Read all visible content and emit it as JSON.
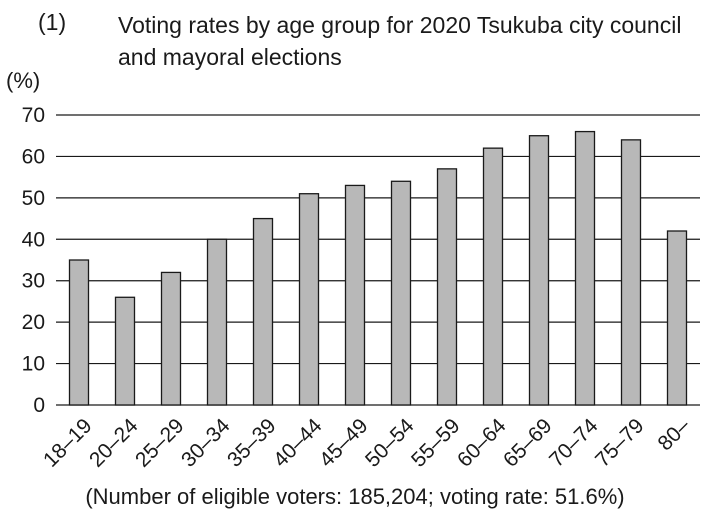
{
  "title_number": "(1)",
  "title": "Voting rates by age group for 2020 Tsukuba city council and mayoral elections",
  "y_unit": "(%)",
  "footnote": "(Number of eligible voters: 185,204; voting rate: 51.6%)",
  "colors": {
    "bar_fill": "#b8b8b8",
    "bar_stroke": "#1a1a1a",
    "grid": "#1a1a1a"
  },
  "chart_data": {
    "type": "bar",
    "title": "Voting rates by age group for 2020 Tsukuba city council and mayoral elections",
    "ylabel": "(%)",
    "xlabel": "",
    "ylim": [
      0,
      70
    ],
    "yticks": [
      0,
      10,
      20,
      30,
      40,
      50,
      60,
      70
    ],
    "grid": true,
    "categories": [
      "18–19",
      "20–24",
      "25–29",
      "30–34",
      "35–39",
      "40–44",
      "45–49",
      "50–54",
      "55–59",
      "60–64",
      "65–69",
      "70–74",
      "75–79",
      "80–"
    ],
    "values": [
      35,
      26,
      32,
      40,
      45,
      51,
      53,
      54,
      57,
      62,
      65,
      66,
      64,
      42
    ]
  }
}
